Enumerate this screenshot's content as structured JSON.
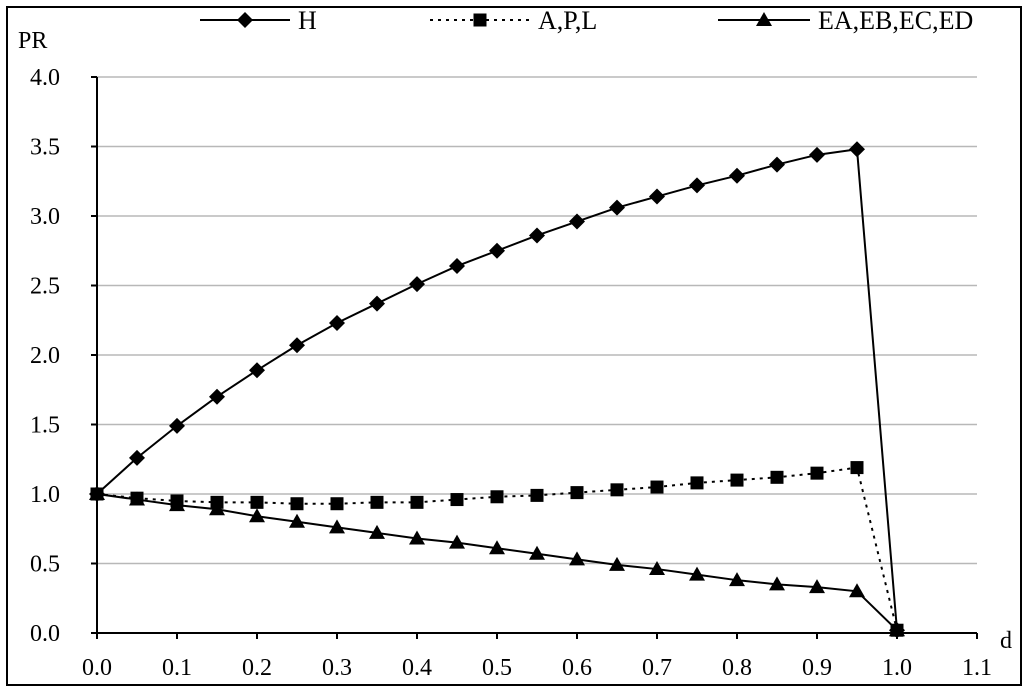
{
  "chart_data": {
    "type": "line",
    "title": "",
    "xlabel": "d",
    "ylabel": "PR",
    "xlim": [
      0.0,
      1.1
    ],
    "ylim": [
      0.0,
      4.0
    ],
    "x_ticks": [
      "0.0",
      "0.1",
      "0.2",
      "0.3",
      "0.4",
      "0.5",
      "0.6",
      "0.7",
      "0.8",
      "0.9",
      "1.0",
      "1.1"
    ],
    "y_ticks": [
      "0.0",
      "0.5",
      "1.0",
      "1.5",
      "2.0",
      "2.5",
      "3.0",
      "3.5",
      "4.0"
    ],
    "grid": "horizontal",
    "legend_position": "top",
    "series": [
      {
        "name": "H",
        "marker": "diamond",
        "line_style": "solid",
        "color": "#000000",
        "points": [
          [
            0.0,
            1.0
          ],
          [
            0.05,
            1.26
          ],
          [
            0.1,
            1.49
          ],
          [
            0.15,
            1.7
          ],
          [
            0.2,
            1.89
          ],
          [
            0.25,
            2.07
          ],
          [
            0.3,
            2.23
          ],
          [
            0.35,
            2.37
          ],
          [
            0.4,
            2.51
          ],
          [
            0.45,
            2.64
          ],
          [
            0.5,
            2.75
          ],
          [
            0.55,
            2.86
          ],
          [
            0.6,
            2.96
          ],
          [
            0.65,
            3.06
          ],
          [
            0.7,
            3.14
          ],
          [
            0.75,
            3.22
          ],
          [
            0.8,
            3.29
          ],
          [
            0.85,
            3.37
          ],
          [
            0.9,
            3.44
          ],
          [
            0.95,
            3.48
          ],
          [
            1.0,
            0.02
          ]
        ]
      },
      {
        "name": "A,P,L",
        "marker": "square",
        "line_style": "dotted",
        "color": "#000000",
        "points": [
          [
            0.0,
            1.0
          ],
          [
            0.05,
            0.97
          ],
          [
            0.1,
            0.95
          ],
          [
            0.15,
            0.94
          ],
          [
            0.2,
            0.94
          ],
          [
            0.25,
            0.93
          ],
          [
            0.3,
            0.93
          ],
          [
            0.35,
            0.94
          ],
          [
            0.4,
            0.94
          ],
          [
            0.45,
            0.96
          ],
          [
            0.5,
            0.98
          ],
          [
            0.55,
            0.99
          ],
          [
            0.6,
            1.01
          ],
          [
            0.65,
            1.03
          ],
          [
            0.7,
            1.05
          ],
          [
            0.75,
            1.08
          ],
          [
            0.8,
            1.1
          ],
          [
            0.85,
            1.12
          ],
          [
            0.9,
            1.15
          ],
          [
            0.95,
            1.19
          ],
          [
            1.0,
            0.02
          ]
        ]
      },
      {
        "name": "EA,EB,EC,ED",
        "marker": "triangle",
        "line_style": "solid",
        "color": "#000000",
        "points": [
          [
            0.0,
            1.0
          ],
          [
            0.05,
            0.96
          ],
          [
            0.1,
            0.92
          ],
          [
            0.15,
            0.89
          ],
          [
            0.2,
            0.84
          ],
          [
            0.25,
            0.8
          ],
          [
            0.3,
            0.76
          ],
          [
            0.35,
            0.72
          ],
          [
            0.4,
            0.68
          ],
          [
            0.45,
            0.65
          ],
          [
            0.5,
            0.61
          ],
          [
            0.55,
            0.57
          ],
          [
            0.6,
            0.53
          ],
          [
            0.65,
            0.49
          ],
          [
            0.7,
            0.46
          ],
          [
            0.75,
            0.42
          ],
          [
            0.8,
            0.38
          ],
          [
            0.85,
            0.35
          ],
          [
            0.9,
            0.33
          ],
          [
            0.95,
            0.3
          ],
          [
            1.0,
            0.02
          ]
        ]
      }
    ]
  }
}
